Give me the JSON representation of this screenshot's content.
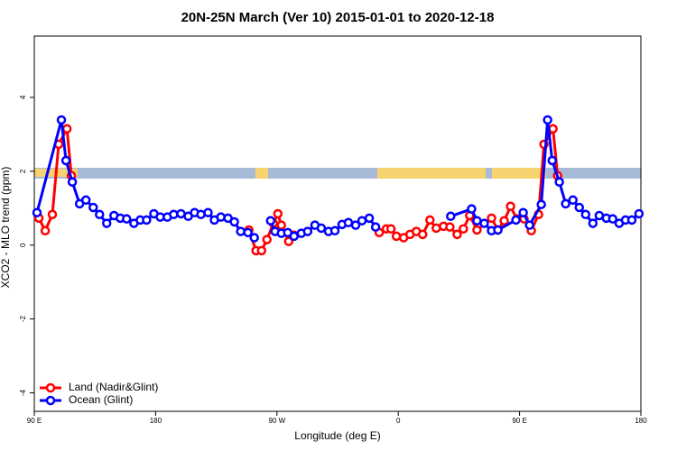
{
  "chart_data": {
    "type": "line",
    "title": "20N-25N March (Ver 10)   2015-01-01 to 2020-12-18",
    "x_label": "Longitude (deg E)",
    "y_label": "XCO2 - MLO trend (ppm)",
    "xlim": [
      90,
      540
    ],
    "ylim": [
      -4.5,
      5.66
    ],
    "xticks": [
      {
        "value": 90,
        "label": "90 E"
      },
      180,
      {
        "value": 270,
        "label": "90 W"
      },
      {
        "value": 360,
        "label": "0"
      },
      {
        "value": 450,
        "label": "90 E"
      },
      {
        "value": 540,
        "label": "180"
      }
    ],
    "yticks": [
      -4,
      -2,
      0,
      2,
      4
    ],
    "legend": "bottom-left",
    "series": [
      {
        "name": "Land (Nadir&Glint)",
        "color": "#ff0000",
        "x": [
          93.4,
          98.1,
          103.4,
          108.1,
          114.2,
          117.5,
          null,
          249.2,
          254.5,
          258.6,
          262.6,
          267.3,
          270.7,
          273.3,
          278.7,
          282.7,
          null,
          345.9,
          351.2,
          354.6,
          358.6,
          364.0,
          368.7,
          373.4,
          378.1,
          383.5,
          388.2,
          393.6,
          398.3,
          403.7,
          408.3,
          413.0,
          418.4,
          429.2,
          433.9,
          438.6,
          443.3,
          447.9,
          453.3,
          458.7,
          464.1,
          468.1,
          474.8,
          478.2
        ],
        "values": [
          0.73,
          0.39,
          0.83,
          2.73,
          3.15,
          1.88,
          null,
          0.41,
          -0.15,
          -0.15,
          0.15,
          0.59,
          0.85,
          0.54,
          0.1,
          0.27,
          null,
          0.34,
          0.44,
          0.44,
          0.24,
          0.2,
          0.29,
          0.37,
          0.29,
          0.68,
          0.46,
          0.51,
          0.49,
          0.29,
          0.44,
          0.8,
          0.41,
          0.73,
          0.41,
          0.66,
          1.05,
          0.71,
          0.71,
          0.39,
          0.83,
          2.73,
          3.15,
          1.88
        ]
      },
      {
        "name": "Ocean (Glint)",
        "color": "#0000ff",
        "x": [
          92.0,
          110.1,
          113.5,
          118.2,
          123.6,
          128.3,
          133.7,
          138.4,
          143.7,
          149.1,
          153.8,
          158.5,
          163.9,
          168.6,
          173.3,
          178.7,
          183.4,
          188.7,
          193.4,
          198.8,
          204.2,
          208.9,
          213.6,
          218.9,
          223.6,
          228.4,
          233.7,
          238.4,
          243.1,
          248.5,
          253.2,
          null,
          265.3,
          268.6,
          273.3,
          278.0,
          282.7,
          288.1,
          292.8,
          298.2,
          302.9,
          308.3,
          313.0,
          318.3,
          323.0,
          328.4,
          333.1,
          338.5,
          343.2,
          null,
          398.9,
          414.4,
          418.4,
          423.8,
          429.2,
          433.9,
          447.3,
          452.7,
          457.4,
          466.1,
          470.8,
          474.2,
          479.5,
          484.2,
          489.6,
          494.3,
          499.0,
          504.4,
          509.1,
          514.4,
          519.1,
          523.9,
          528.6,
          533.3,
          538.6
        ],
        "values": [
          0.88,
          3.39,
          2.29,
          1.71,
          1.12,
          1.22,
          1.02,
          0.83,
          0.59,
          0.8,
          0.73,
          0.71,
          0.59,
          0.68,
          0.68,
          0.85,
          0.76,
          0.76,
          0.83,
          0.85,
          0.78,
          0.88,
          0.83,
          0.88,
          0.68,
          0.76,
          0.73,
          0.63,
          0.37,
          0.34,
          0.2,
          null,
          0.66,
          0.37,
          0.32,
          0.34,
          0.24,
          0.32,
          0.37,
          0.54,
          0.46,
          0.37,
          0.39,
          0.56,
          0.61,
          0.54,
          0.66,
          0.73,
          0.49,
          null,
          0.78,
          0.98,
          0.66,
          0.59,
          0.39,
          0.41,
          0.68,
          0.88,
          0.54,
          1.1,
          3.39,
          2.29,
          1.71,
          1.12,
          1.22,
          1.02,
          0.83,
          0.59,
          0.8,
          0.73,
          0.71,
          0.59,
          0.68,
          0.68,
          0.85
        ]
      }
    ]
  }
}
